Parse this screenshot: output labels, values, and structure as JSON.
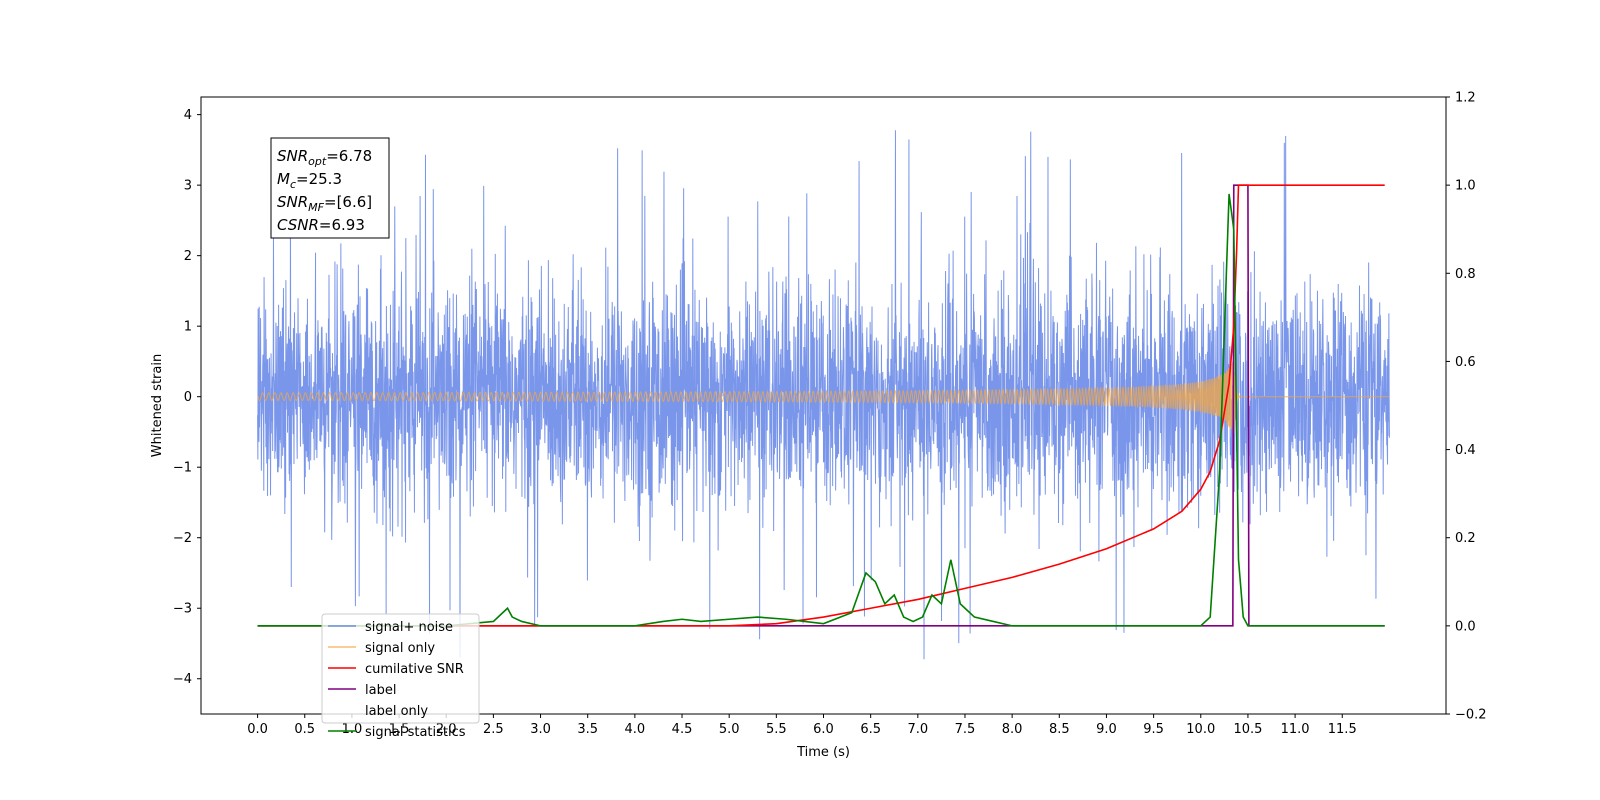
{
  "chart_data": {
    "type": "line",
    "title": "",
    "xlabel": "Time (s)",
    "ylabel": "Whitened strain",
    "y2label": "",
    "xlim": [
      -0.6,
      12.6
    ],
    "ylim": [
      -4.5,
      4.25
    ],
    "y2lim": [
      -0.2,
      1.2
    ],
    "xticks": [
      0.0,
      0.5,
      1.0,
      1.5,
      2.0,
      2.5,
      3.0,
      3.5,
      4.0,
      4.5,
      5.0,
      5.5,
      6.0,
      6.5,
      7.0,
      7.5,
      8.0,
      8.5,
      9.0,
      9.5,
      10.0,
      10.5,
      11.0,
      11.5
    ],
    "xtick_labels": [
      "0.0",
      "0.5",
      "1.0",
      "1.5",
      "2.0",
      "2.5",
      "3.0",
      "3.5",
      "4.0",
      "4.5",
      "5.0",
      "5.5",
      "6.0",
      "6.5",
      "7.0",
      "7.5",
      "8.0",
      "8.5",
      "9.0",
      "9.5",
      "10.0",
      "10.5",
      "11.0",
      "11.5"
    ],
    "yticks": [
      -4,
      -3,
      -2,
      -1,
      0,
      1,
      2,
      3,
      4
    ],
    "ytick_labels": [
      "−4",
      "−3",
      "−2",
      "−1",
      "0",
      "1",
      "2",
      "3",
      "4"
    ],
    "y2ticks": [
      -0.2,
      0.0,
      0.2,
      0.4,
      0.6,
      0.8,
      1.0,
      1.2
    ],
    "y2tick_labels": [
      "−0.2",
      "0.0",
      "0.2",
      "0.4",
      "0.6",
      "0.8",
      "1.0",
      "1.2"
    ],
    "grid": false,
    "legend_position": "lower-left",
    "annotation": {
      "lines": [
        {
          "sym": "SNR",
          "sub": "opt",
          "val": "=6.78"
        },
        {
          "sym": "M",
          "sub": "c",
          "val": "=25.3"
        },
        {
          "sym": "SNR",
          "sub": "MF",
          "val": "=[6.6]"
        },
        {
          "sym": "CSNR",
          "sub": "",
          "val": "=6.93"
        }
      ]
    },
    "series": [
      {
        "name": "signal+ noise",
        "axis": "left",
        "color": "#4169e1",
        "style": "noise",
        "x_range": [
          0.0,
          12.0
        ],
        "amplitude_typical": 1.7,
        "amplitude_peak": 3.85
      },
      {
        "name": "signal only",
        "axis": "left",
        "color": "#f5a742",
        "style": "chirp",
        "x_range": [
          0.0,
          12.0
        ],
        "merger_time": 10.35,
        "peak_amplitude": 0.75
      },
      {
        "name": "cumilative SNR",
        "axis": "right",
        "color": "#ff0000",
        "x": [
          0.0,
          5.0,
          5.5,
          6.0,
          6.5,
          7.0,
          7.5,
          8.0,
          8.5,
          9.0,
          9.5,
          9.8,
          10.0,
          10.1,
          10.2,
          10.3,
          10.35,
          10.38,
          10.4,
          11.0,
          11.5,
          11.95
        ],
        "values": [
          0.0,
          0.0,
          0.005,
          0.02,
          0.04,
          0.06,
          0.085,
          0.11,
          0.14,
          0.175,
          0.22,
          0.26,
          0.31,
          0.35,
          0.42,
          0.55,
          0.68,
          0.85,
          1.0,
          1.0,
          1.0,
          1.0
        ]
      },
      {
        "name": "label",
        "axis": "right",
        "color": "#800080",
        "x": [
          0.0,
          10.34,
          10.35,
          10.5,
          10.51,
          11.95
        ],
        "values": [
          0.0,
          0.0,
          1.0,
          1.0,
          0.0,
          0.0
        ]
      },
      {
        "name": "label only",
        "axis": "right",
        "color": "#800080",
        "hidden_line": true,
        "x": [],
        "values": []
      },
      {
        "name": "signal statistics",
        "axis": "right",
        "color": "#008000",
        "x": [
          0.0,
          2.0,
          2.5,
          2.6,
          2.65,
          2.7,
          2.8,
          3.0,
          4.0,
          4.3,
          4.5,
          4.7,
          5.0,
          5.3,
          5.6,
          5.8,
          6.0,
          6.3,
          6.45,
          6.55,
          6.65,
          6.75,
          6.85,
          6.95,
          7.05,
          7.15,
          7.25,
          7.35,
          7.45,
          7.5,
          7.6,
          7.8,
          8.0,
          8.3,
          8.5,
          9.0,
          10.0,
          10.1,
          10.2,
          10.3,
          10.35,
          10.4,
          10.45,
          10.5,
          11.0,
          11.95
        ],
        "values": [
          0.0,
          0.0,
          0.01,
          0.03,
          0.04,
          0.02,
          0.01,
          0.0,
          0.0,
          0.01,
          0.015,
          0.01,
          0.015,
          0.02,
          0.015,
          0.01,
          0.005,
          0.03,
          0.12,
          0.1,
          0.05,
          0.07,
          0.02,
          0.01,
          0.02,
          0.07,
          0.05,
          0.15,
          0.05,
          0.04,
          0.02,
          0.01,
          0.0,
          0.0,
          0.0,
          0.0,
          0.0,
          0.02,
          0.35,
          0.98,
          0.9,
          0.15,
          0.02,
          0.0,
          0.0,
          0.0
        ]
      }
    ]
  }
}
